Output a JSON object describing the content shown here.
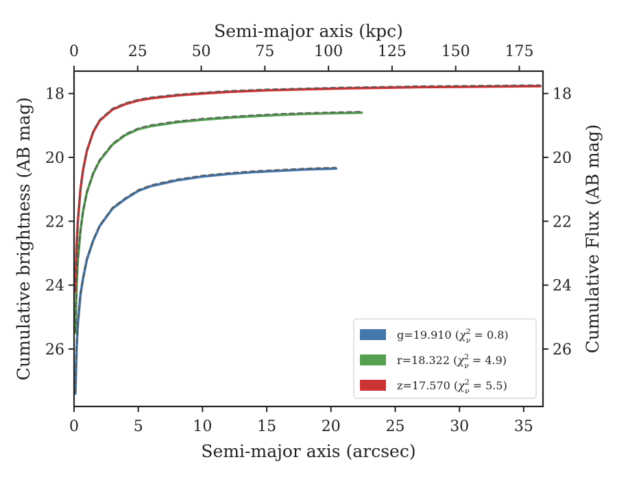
{
  "chart_data": {
    "type": "line",
    "xlabel": "Semi-major axis (arcsec)",
    "x2label": "Semi-major axis (kpc)",
    "ylabel": "Cumulative brightness (AB mag)",
    "y2label": "Cumulative Flux (AB mag)",
    "xlim": [
      0,
      36.5
    ],
    "ylim": [
      27.8,
      17.3
    ],
    "x2lim": [
      0,
      184.3
    ],
    "y_inverted": true,
    "xticks": [
      "0",
      "5",
      "10",
      "15",
      "20",
      "25",
      "30",
      "35"
    ],
    "x2ticks": [
      "0",
      "25",
      "50",
      "75",
      "100",
      "125",
      "150",
      "175"
    ],
    "yticks": [
      "18",
      "20",
      "22",
      "24",
      "26"
    ],
    "grid": false,
    "legend_position": "bottom-right",
    "legend": [
      {
        "text": "g=19.910 (",
        "math": "χ",
        "sup": "2",
        "sub": "ν",
        "tail": " = 0.8)",
        "color": "#4477aa"
      },
      {
        "text": "r=18.322 (",
        "math": "χ",
        "sup": "2",
        "sub": "ν",
        "tail": " = 4.9)",
        "color": "#55a050"
      },
      {
        "text": "z=17.570 (",
        "math": "χ",
        "sup": "2",
        "sub": "ν",
        "tail": " = 5.5)",
        "color": "#cc3333"
      }
    ],
    "series": [
      {
        "band": "g",
        "color": "#4477aa",
        "x": [
          0.1,
          0.2,
          0.3,
          0.5,
          0.7,
          1.0,
          1.5,
          2.0,
          3.0,
          4.0,
          5.0,
          6.0,
          8.0,
          10.0,
          12.0,
          14.0,
          16.0,
          18.0,
          20.4
        ],
        "y": [
          27.4,
          26.0,
          25.2,
          24.3,
          23.8,
          23.2,
          22.6,
          22.15,
          21.6,
          21.3,
          21.05,
          20.9,
          20.72,
          20.6,
          20.52,
          20.46,
          20.42,
          20.38,
          20.35
        ]
      },
      {
        "band": "r",
        "color": "#55a050",
        "x": [
          0.1,
          0.2,
          0.3,
          0.5,
          0.7,
          1.0,
          1.5,
          2.0,
          3.0,
          4.0,
          5.0,
          6.0,
          8.0,
          10.0,
          12.0,
          14.0,
          16.0,
          18.0,
          20.0,
          22.4
        ],
        "y": [
          25.5,
          24.0,
          23.2,
          22.3,
          21.7,
          21.1,
          20.5,
          20.1,
          19.6,
          19.3,
          19.12,
          19.02,
          18.9,
          18.82,
          18.76,
          18.71,
          18.67,
          18.64,
          18.62,
          18.6
        ]
      },
      {
        "band": "z",
        "color": "#cc3333",
        "x": [
          0.1,
          0.2,
          0.3,
          0.5,
          0.7,
          1.0,
          1.5,
          2.0,
          3.0,
          4.0,
          5.0,
          6.0,
          8.0,
          10.0,
          12.0,
          15.0,
          18.0,
          21.0,
          24.0,
          27.0,
          30.0,
          33.0,
          36.3
        ],
        "y": [
          24.2,
          22.8,
          22.0,
          21.0,
          20.4,
          19.8,
          19.2,
          18.85,
          18.5,
          18.33,
          18.22,
          18.15,
          18.06,
          18.0,
          17.95,
          17.9,
          17.87,
          17.84,
          17.82,
          17.8,
          17.79,
          17.78,
          17.77
        ]
      }
    ]
  }
}
